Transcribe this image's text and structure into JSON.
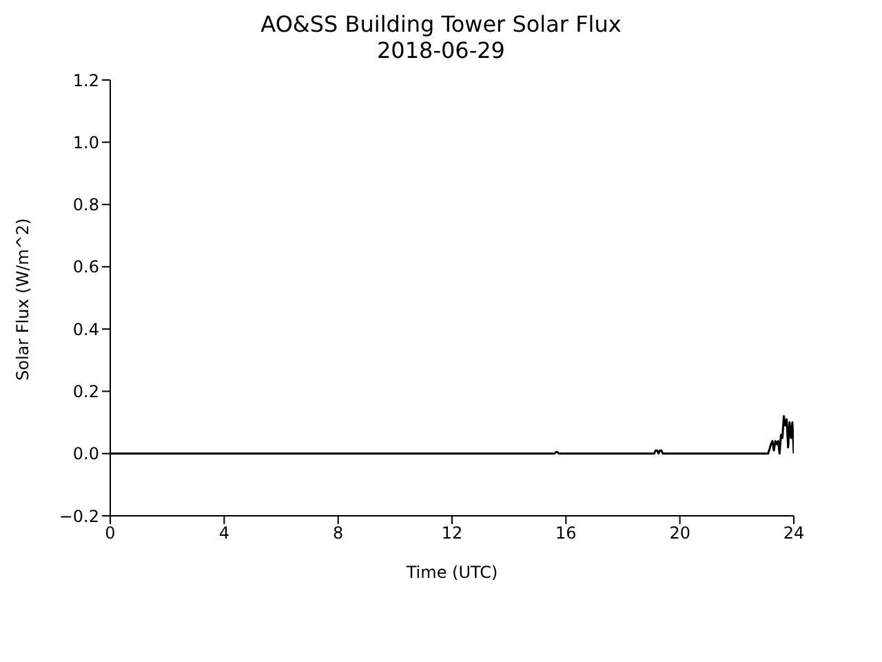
{
  "chart_data": {
    "type": "line",
    "title": "AO&SS Building Tower Solar Flux",
    "subtitle": "2018-06-29",
    "xlabel": "Time (UTC)",
    "ylabel": "Solar Flux (W/m^2)",
    "series": [
      {
        "color": "#000000",
        "x": [
          0,
          2,
          4,
          6,
          8,
          10,
          12,
          14,
          15.6,
          15.65,
          15.7,
          15.75,
          15.8,
          17,
          19.1,
          19.15,
          19.2,
          19.25,
          19.3,
          19.35,
          19.4,
          19.45,
          19.5,
          21,
          23.1,
          23.2,
          23.25,
          23.3,
          23.35,
          23.4,
          23.45,
          23.5,
          23.55,
          23.6,
          23.65,
          23.7,
          23.75,
          23.8,
          23.85,
          23.9,
          23.95,
          24
        ],
        "values": [
          0,
          0,
          0,
          0,
          0,
          0,
          0,
          0,
          0,
          0.005,
          0.005,
          0,
          0,
          0,
          0,
          0.01,
          0.01,
          0,
          0.01,
          0.01,
          0,
          0,
          0,
          0,
          0,
          0.03,
          0.04,
          0.01,
          0.04,
          0.03,
          0.04,
          0,
          0.06,
          0.05,
          0.12,
          0.09,
          0.11,
          0.02,
          0.1,
          0.05,
          0.1,
          0
        ]
      }
    ],
    "xlim": [
      0,
      24
    ],
    "xticks": [
      0,
      4,
      8,
      12,
      16,
      20,
      24
    ],
    "ylim": [
      -0.2,
      1.2
    ],
    "yticks": [
      {
        "value": -0.2,
        "label": "−0.2"
      },
      {
        "value": 0,
        "label": "0.0"
      },
      {
        "value": 0.2,
        "label": "0.2"
      },
      {
        "value": 0.4,
        "label": "0.4"
      },
      {
        "value": 0.6,
        "label": "0.6"
      },
      {
        "value": 0.8,
        "label": "0.8"
      },
      {
        "value": 1,
        "label": "1.0"
      },
      {
        "value": 1.2,
        "label": "1.2"
      }
    ],
    "grid": false,
    "marker": "none",
    "line_style": "solid"
  }
}
